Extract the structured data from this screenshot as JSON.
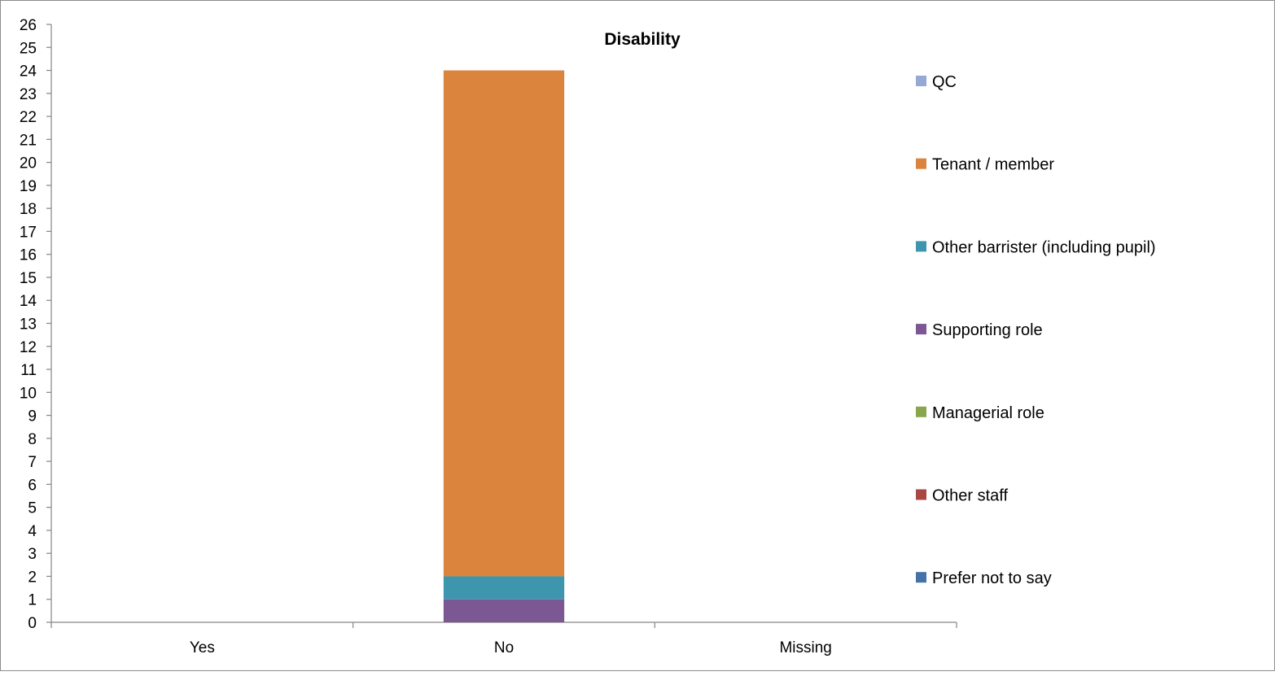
{
  "chart_data": {
    "type": "bar",
    "stacked": true,
    "title": "Disability",
    "xlabel": "",
    "ylabel": "",
    "categories": [
      "Yes",
      "No",
      "Missing"
    ],
    "ylim": [
      0,
      26
    ],
    "y_ticks": [
      0,
      1,
      2,
      3,
      4,
      5,
      6,
      7,
      8,
      9,
      10,
      11,
      12,
      13,
      14,
      15,
      16,
      17,
      18,
      19,
      20,
      21,
      22,
      23,
      24,
      25,
      26
    ],
    "grid": false,
    "legend_position": "right",
    "series": [
      {
        "name": "QC",
        "color": "#95a9d4",
        "values": [
          0,
          0,
          0
        ]
      },
      {
        "name": "Tenant / member",
        "color": "#db843d",
        "values": [
          0,
          22,
          0
        ]
      },
      {
        "name": "Other barrister (including pupil)",
        "color": "#3d96ae",
        "values": [
          0,
          1,
          0
        ]
      },
      {
        "name": "Supporting role",
        "color": "#7b5794",
        "values": [
          0,
          1,
          0
        ]
      },
      {
        "name": "Managerial role",
        "color": "#89a54e",
        "values": [
          0,
          0,
          0
        ]
      },
      {
        "name": "Other staff",
        "color": "#aa4643",
        "values": [
          0,
          0,
          0
        ]
      },
      {
        "name": "Prefer not to say",
        "color": "#4572a7",
        "values": [
          0,
          0,
          0
        ]
      }
    ],
    "stack_order_bottom_to_top": [
      "Prefer not to say",
      "Other staff",
      "Managerial role",
      "Supporting role",
      "Other barrister (including pupil)",
      "Tenant / member",
      "QC"
    ]
  }
}
